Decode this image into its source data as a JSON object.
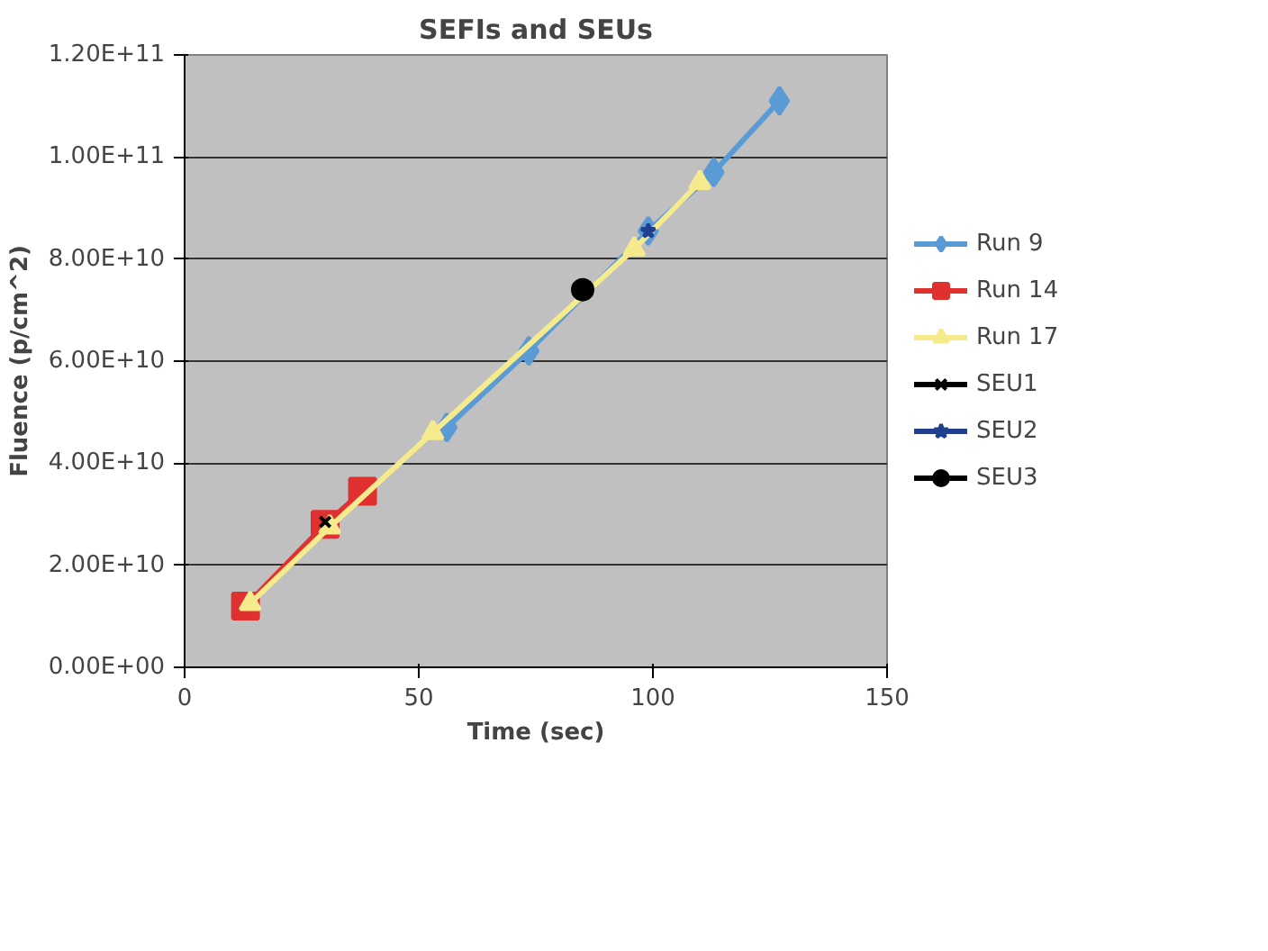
{
  "chart_data": {
    "type": "line",
    "title": "SEFIs and SEUs",
    "xlabel": "Time (sec)",
    "ylabel": "Fluence (p/cm^2)",
    "xlim": [
      0,
      150
    ],
    "xticks": [
      0,
      50,
      100,
      150
    ],
    "ylim": [
      0,
      120000000000
    ],
    "yticks": [
      {
        "value": 0,
        "label": "0.00E+00"
      },
      {
        "value": 20000000000,
        "label": "2.00E+10"
      },
      {
        "value": 40000000000,
        "label": "4.00E+10"
      },
      {
        "value": 60000000000,
        "label": "6.00E+10"
      },
      {
        "value": 80000000000,
        "label": "8.00E+10"
      },
      {
        "value": 100000000000,
        "label": "1.00E+11"
      },
      {
        "value": 120000000000,
        "label": "1.20E+11"
      }
    ],
    "grid": "y",
    "legend": "right",
    "series": [
      {
        "name": "Run 9",
        "color": "#5b9bd5",
        "marker": "diamond",
        "x": [
          56,
          73.5,
          99,
          113,
          127
        ],
        "values": [
          47000000000,
          62000000000,
          85500000000,
          97000000000,
          111000000000
        ]
      },
      {
        "name": "Run 14",
        "color": "#e03030",
        "marker": "square",
        "x": [
          13,
          30,
          38
        ],
        "values": [
          12000000000,
          28000000000,
          34500000000
        ]
      },
      {
        "name": "Run 17",
        "color": "#f5ea8c",
        "marker": "triangle",
        "x": [
          14,
          31,
          53,
          96,
          110
        ],
        "values": [
          12500000000,
          27500000000,
          46000000000,
          82000000000,
          95000000000
        ]
      },
      {
        "name": "SEU1",
        "color": "#000000",
        "marker": "cross",
        "x": [
          30
        ],
        "values": [
          28500000000
        ]
      },
      {
        "name": "SEU2",
        "color": "#1f3f8f",
        "marker": "star",
        "x": [
          99
        ],
        "values": [
          85500000000
        ]
      },
      {
        "name": "SEU3",
        "color": "#000000",
        "marker": "circle",
        "x": [
          85
        ],
        "values": [
          74000000000
        ]
      }
    ]
  }
}
